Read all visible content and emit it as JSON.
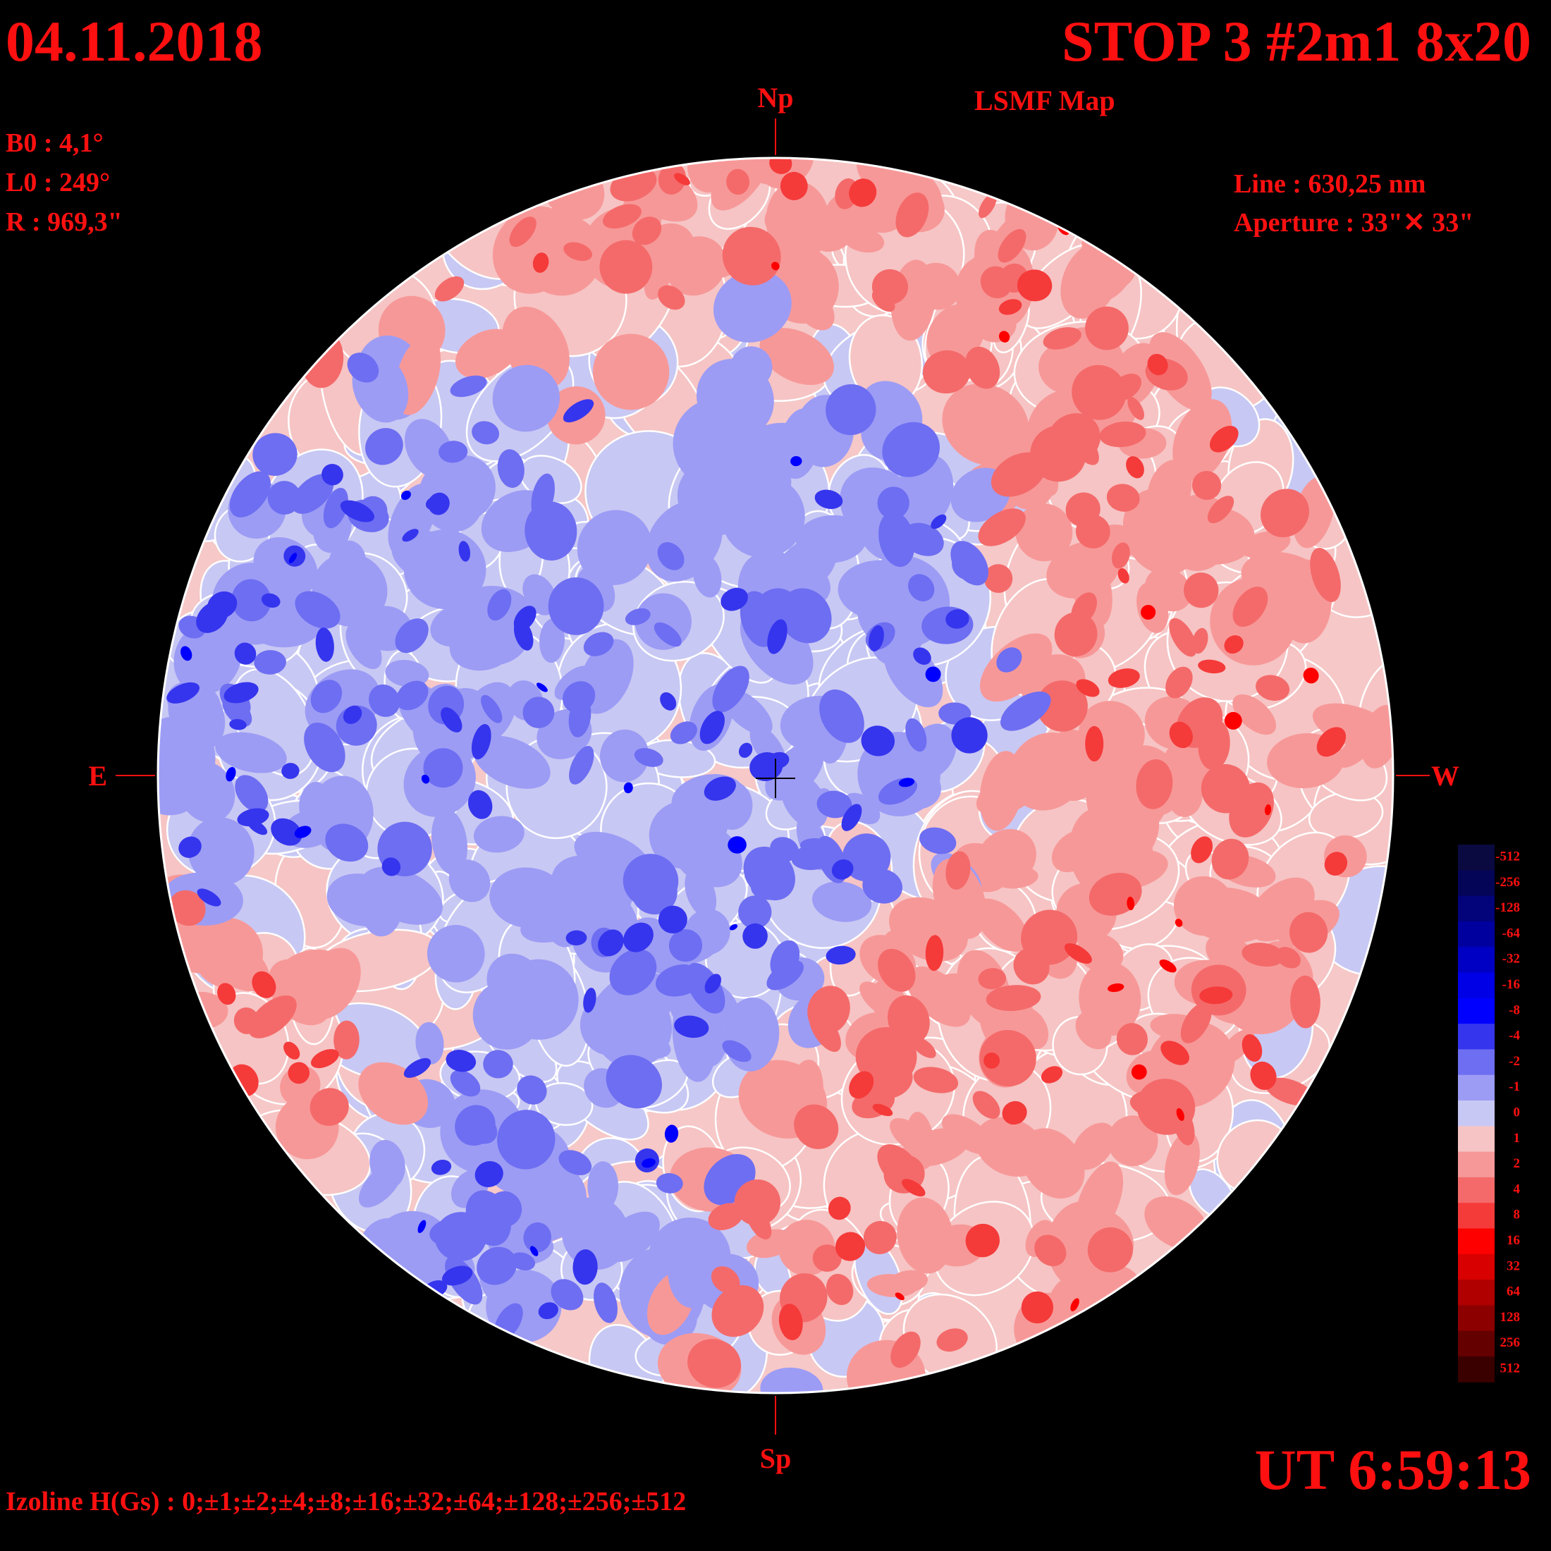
{
  "header": {
    "date": "04.11.2018",
    "title": "STOP 3 #2m1 8x20",
    "subtitle": "LSMF  Map"
  },
  "params": {
    "b0": "B0 : 4,1°",
    "l0": "L0 : 249°",
    "r": "R  : 969,3\""
  },
  "instrument": {
    "line": "Line :  630,25 nm",
    "aperture": "Aperture : 33\"✕ 33\""
  },
  "compass": {
    "north": "Np",
    "south": "Sp",
    "east": "E",
    "west": "W"
  },
  "time": "UT 6:59:13",
  "izoline": "Izoline H(Gs) : 0;±1;±2;±4;±8;±16;±32;±64;±128;±256;±512",
  "legend": {
    "levels": [
      {
        "label": "-512",
        "color": "#0a0a40"
      },
      {
        "label": "-256",
        "color": "#050558"
      },
      {
        "label": "-128",
        "color": "#03037a"
      },
      {
        "label": "-64",
        "color": "#00009f"
      },
      {
        "label": "-32",
        "color": "#0000c4"
      },
      {
        "label": "-16",
        "color": "#0000e6"
      },
      {
        "label": "-8",
        "color": "#0000ff"
      },
      {
        "label": "-4",
        "color": "#3535ee"
      },
      {
        "label": "-2",
        "color": "#6e6ef2"
      },
      {
        "label": "-1",
        "color": "#9c9cf5"
      },
      {
        "label": "0",
        "color": "#c8c8f4"
      },
      {
        "label": "1",
        "color": "#f6c4c4"
      },
      {
        "label": "2",
        "color": "#f79898"
      },
      {
        "label": "4",
        "color": "#f46a6a"
      },
      {
        "label": "8",
        "color": "#f53a3a"
      },
      {
        "label": "16",
        "color": "#ff0000"
      },
      {
        "label": "32",
        "color": "#d80000"
      },
      {
        "label": "64",
        "color": "#b00000"
      },
      {
        "label": "128",
        "color": "#8c0000"
      },
      {
        "label": "256",
        "color": "#640000"
      },
      {
        "label": "512",
        "color": "#3a0000"
      }
    ]
  }
}
